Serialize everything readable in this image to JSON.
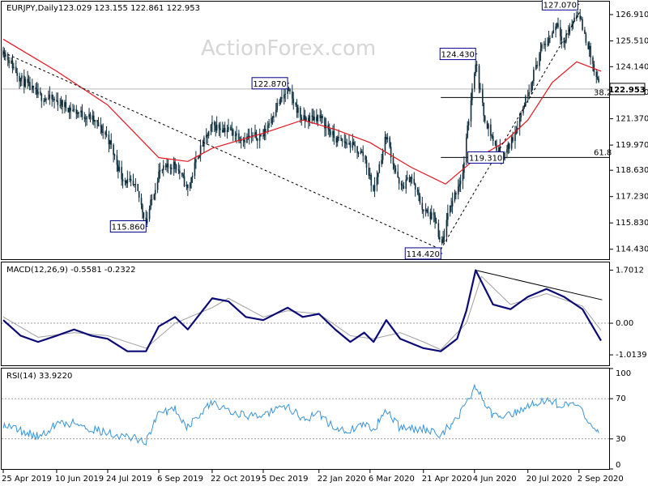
{
  "chart_data": [
    {
      "type": "candlestick",
      "symbol": "EURJPY",
      "timeframe": "Daily",
      "header": {
        "symbol_timeframe": "EURJPY,Daily",
        "ohlc": "123.029 123.155 122.861 122.953"
      },
      "watermark": "ActionForex.com",
      "current_price": 122.953,
      "current_price_label": "122.953",
      "ylim": [
        113.9,
        127.6
      ],
      "y_ticks": [
        {
          "value": 126.91,
          "label": "126.910"
        },
        {
          "value": 125.51,
          "label": "125.510"
        },
        {
          "value": 124.14,
          "label": "124.140"
        },
        {
          "value": 122.77,
          "label": "122.770"
        },
        {
          "value": 121.37,
          "label": "121.370"
        },
        {
          "value": 119.97,
          "label": "119.970"
        },
        {
          "value": 118.63,
          "label": "118.630"
        },
        {
          "value": 117.23,
          "label": "117.230"
        },
        {
          "value": 115.83,
          "label": "115.830"
        },
        {
          "value": 114.43,
          "label": "114.430"
        }
      ],
      "x_ticks": [
        {
          "date": "2019-04-25",
          "label": "25 Apr 2019"
        },
        {
          "date": "2019-06-10",
          "label": "10 Jun 2019"
        },
        {
          "date": "2019-07-24",
          "label": "24 Jul 2019"
        },
        {
          "date": "2019-09-06",
          "label": "6 Sep 2019"
        },
        {
          "date": "2019-10-22",
          "label": "22 Oct 2019"
        },
        {
          "date": "2019-12-05",
          "label": "5 Dec 2019"
        },
        {
          "date": "2020-01-22",
          "label": "22 Jan 2020"
        },
        {
          "date": "2020-03-06",
          "label": "6 Mar 2020"
        },
        {
          "date": "2020-04-21",
          "label": "21 Apr 2020"
        },
        {
          "date": "2020-06-04",
          "label": "4 Jun 2020"
        },
        {
          "date": "2020-07-20",
          "label": "20 Jul 2020"
        },
        {
          "date": "2020-09-02",
          "label": "2 Sep 2020"
        }
      ],
      "price_path": [
        {
          "date": "2019-04-25",
          "value": 125.0
        },
        {
          "date": "2019-05-10",
          "value": 123.5
        },
        {
          "date": "2019-05-25",
          "value": 122.6
        },
        {
          "date": "2019-06-10",
          "value": 122.3
        },
        {
          "date": "2019-06-25",
          "value": 121.8
        },
        {
          "date": "2019-07-10",
          "value": 121.4
        },
        {
          "date": "2019-07-24",
          "value": 120.4
        },
        {
          "date": "2019-08-05",
          "value": 118.3
        },
        {
          "date": "2019-08-18",
          "value": 117.6
        },
        {
          "date": "2019-08-26",
          "value": 115.86
        },
        {
          "date": "2019-09-06",
          "value": 118.5
        },
        {
          "date": "2019-09-20",
          "value": 119.0
        },
        {
          "date": "2019-10-01",
          "value": 117.6
        },
        {
          "date": "2019-10-10",
          "value": 119.5
        },
        {
          "date": "2019-10-22",
          "value": 121.0
        },
        {
          "date": "2019-11-05",
          "value": 120.8
        },
        {
          "date": "2019-11-18",
          "value": 120.3
        },
        {
          "date": "2019-12-05",
          "value": 120.5
        },
        {
          "date": "2019-12-16",
          "value": 122.0
        },
        {
          "date": "2019-12-26",
          "value": 122.87
        },
        {
          "date": "2020-01-08",
          "value": 121.3
        },
        {
          "date": "2020-01-22",
          "value": 121.5
        },
        {
          "date": "2020-02-05",
          "value": 120.3
        },
        {
          "date": "2020-02-18",
          "value": 120.0
        },
        {
          "date": "2020-03-01",
          "value": 119.4
        },
        {
          "date": "2020-03-09",
          "value": 117.5
        },
        {
          "date": "2020-03-20",
          "value": 120.5
        },
        {
          "date": "2020-04-01",
          "value": 117.6
        },
        {
          "date": "2020-04-10",
          "value": 118.3
        },
        {
          "date": "2020-04-21",
          "value": 116.5
        },
        {
          "date": "2020-05-01",
          "value": 116.0
        },
        {
          "date": "2020-05-06",
          "value": 114.42
        },
        {
          "date": "2020-05-14",
          "value": 116.7
        },
        {
          "date": "2020-05-25",
          "value": 118.5
        },
        {
          "date": "2020-06-01",
          "value": 122.5
        },
        {
          "date": "2020-06-05",
          "value": 124.43
        },
        {
          "date": "2020-06-12",
          "value": 121.6
        },
        {
          "date": "2020-06-22",
          "value": 119.9
        },
        {
          "date": "2020-06-29",
          "value": 119.31
        },
        {
          "date": "2020-07-08",
          "value": 120.5
        },
        {
          "date": "2020-07-20",
          "value": 122.8
        },
        {
          "date": "2020-07-31",
          "value": 125.0
        },
        {
          "date": "2020-08-07",
          "value": 125.6
        },
        {
          "date": "2020-08-14",
          "value": 126.5
        },
        {
          "date": "2020-08-20",
          "value": 125.4
        },
        {
          "date": "2020-08-28",
          "value": 126.6
        },
        {
          "date": "2020-09-01",
          "value": 127.07
        },
        {
          "date": "2020-09-07",
          "value": 125.8
        },
        {
          "date": "2020-09-11",
          "value": 125.0
        },
        {
          "date": "2020-09-16",
          "value": 123.6
        },
        {
          "date": "2020-09-21",
          "value": 122.953
        }
      ],
      "moving_average": [
        {
          "date": "2019-04-25",
          "value": 125.6
        },
        {
          "date": "2019-06-10",
          "value": 123.9
        },
        {
          "date": "2019-07-24",
          "value": 122.1
        },
        {
          "date": "2019-09-06",
          "value": 119.3
        },
        {
          "date": "2019-10-01",
          "value": 119.1
        },
        {
          "date": "2019-10-22",
          "value": 119.8
        },
        {
          "date": "2019-12-05",
          "value": 120.6
        },
        {
          "date": "2020-01-08",
          "value": 121.3
        },
        {
          "date": "2020-02-05",
          "value": 120.8
        },
        {
          "date": "2020-03-06",
          "value": 120.1
        },
        {
          "date": "2020-04-10",
          "value": 118.8
        },
        {
          "date": "2020-05-10",
          "value": 117.9
        },
        {
          "date": "2020-06-04",
          "value": 119.2
        },
        {
          "date": "2020-06-29",
          "value": 120.1
        },
        {
          "date": "2020-07-20",
          "value": 121.3
        },
        {
          "date": "2020-08-10",
          "value": 123.3
        },
        {
          "date": "2020-08-31",
          "value": 124.4
        },
        {
          "date": "2020-09-21",
          "value": 123.9
        }
      ],
      "annotations": [
        {
          "date": "2019-08-26",
          "value": 115.86,
          "label": "115.860",
          "position": "below-left"
        },
        {
          "date": "2019-12-26",
          "value": 122.87,
          "label": "122.870",
          "position": "above-left"
        },
        {
          "date": "2020-05-06",
          "value": 114.42,
          "label": "114.420",
          "position": "below-left"
        },
        {
          "date": "2020-06-05",
          "value": 124.43,
          "label": "124.430",
          "position": "above-left"
        },
        {
          "date": "2020-06-29",
          "value": 119.31,
          "label": "119.310",
          "position": "at-left"
        },
        {
          "date": "2020-09-01",
          "value": 127.07,
          "label": "127.070",
          "position": "above-left"
        }
      ],
      "fib_levels": [
        {
          "label": "38.2",
          "value": 122.5,
          "from_date": "2020-05-06"
        },
        {
          "label": "61.8",
          "value": 119.31,
          "from_date": "2020-05-06"
        }
      ],
      "trend_lines": [
        {
          "from": {
            "date": "2019-04-25",
            "value": 124.9
          },
          "to": {
            "date": "2020-05-06",
            "value": 114.42
          }
        },
        {
          "from": {
            "date": "2020-05-06",
            "value": 114.42
          },
          "to": {
            "date": "2020-09-03",
            "value": 127.07
          }
        }
      ]
    },
    {
      "type": "line",
      "indicator": "MACD",
      "title": "MACD(12,26,9) -0.5581 -0.2322",
      "ylim": [
        -1.35,
        1.95
      ],
      "y_ticks": [
        {
          "value": 1.7012,
          "label": "1.7012"
        },
        {
          "value": 0.0,
          "label": "0.00"
        },
        {
          "value": -1.0139,
          "label": "-1.0139"
        }
      ],
      "series": [
        {
          "values": [
            {
              "date": "2019-04-25",
              "value": 0.1
            },
            {
              "date": "2019-05-10",
              "value": -0.4
            },
            {
              "date": "2019-05-25",
              "value": -0.6
            },
            {
              "date": "2019-06-10",
              "value": -0.4
            },
            {
              "date": "2019-06-25",
              "value": -0.2
            },
            {
              "date": "2019-07-10",
              "value": -0.4
            },
            {
              "date": "2019-07-24",
              "value": -0.5
            },
            {
              "date": "2019-08-10",
              "value": -0.9
            },
            {
              "date": "2019-08-26",
              "value": -0.9
            },
            {
              "date": "2019-09-06",
              "value": -0.1
            },
            {
              "date": "2019-09-20",
              "value": 0.2
            },
            {
              "date": "2019-10-01",
              "value": -0.2
            },
            {
              "date": "2019-10-22",
              "value": 0.8
            },
            {
              "date": "2019-11-05",
              "value": 0.7
            },
            {
              "date": "2019-11-20",
              "value": 0.2
            },
            {
              "date": "2019-12-05",
              "value": 0.1
            },
            {
              "date": "2019-12-26",
              "value": 0.5
            },
            {
              "date": "2020-01-08",
              "value": 0.2
            },
            {
              "date": "2020-01-22",
              "value": 0.3
            },
            {
              "date": "2020-02-05",
              "value": -0.2
            },
            {
              "date": "2020-02-18",
              "value": -0.6
            },
            {
              "date": "2020-03-01",
              "value": -0.3
            },
            {
              "date": "2020-03-09",
              "value": -0.6
            },
            {
              "date": "2020-03-20",
              "value": 0.1
            },
            {
              "date": "2020-04-01",
              "value": -0.5
            },
            {
              "date": "2020-04-21",
              "value": -0.8
            },
            {
              "date": "2020-05-06",
              "value": -0.9
            },
            {
              "date": "2020-05-20",
              "value": -0.5
            },
            {
              "date": "2020-05-28",
              "value": 0.4
            },
            {
              "date": "2020-06-05",
              "value": 1.7
            },
            {
              "date": "2020-06-20",
              "value": 0.6
            },
            {
              "date": "2020-07-05",
              "value": 0.45
            },
            {
              "date": "2020-07-20",
              "value": 0.85
            },
            {
              "date": "2020-08-05",
              "value": 1.1
            },
            {
              "date": "2020-08-20",
              "value": 0.85
            },
            {
              "date": "2020-09-05",
              "value": 0.45
            },
            {
              "date": "2020-09-21",
              "value": -0.56
            }
          ]
        },
        {
          "values": [
            {
              "date": "2019-04-25",
              "value": 0.2
            },
            {
              "date": "2019-05-25",
              "value": -0.45
            },
            {
              "date": "2019-06-25",
              "value": -0.3
            },
            {
              "date": "2019-07-24",
              "value": -0.4
            },
            {
              "date": "2019-08-26",
              "value": -0.8
            },
            {
              "date": "2019-09-20",
              "value": 0.0
            },
            {
              "date": "2019-10-22",
              "value": 0.5
            },
            {
              "date": "2019-11-05",
              "value": 0.8
            },
            {
              "date": "2019-12-05",
              "value": 0.2
            },
            {
              "date": "2019-12-26",
              "value": 0.4
            },
            {
              "date": "2020-01-22",
              "value": 0.3
            },
            {
              "date": "2020-02-18",
              "value": -0.4
            },
            {
              "date": "2020-03-09",
              "value": -0.5
            },
            {
              "date": "2020-04-01",
              "value": -0.3
            },
            {
              "date": "2020-04-21",
              "value": -0.6
            },
            {
              "date": "2020-05-06",
              "value": -0.85
            },
            {
              "date": "2020-05-28",
              "value": 0.0
            },
            {
              "date": "2020-06-10",
              "value": 1.5
            },
            {
              "date": "2020-07-05",
              "value": 0.6
            },
            {
              "date": "2020-08-05",
              "value": 0.95
            },
            {
              "date": "2020-09-05",
              "value": 0.55
            },
            {
              "date": "2020-09-21",
              "value": -0.23
            }
          ]
        }
      ],
      "trend_lines": [
        {
          "from": {
            "date": "2020-06-05",
            "value": 1.7
          },
          "to": {
            "date": "2020-09-22",
            "value": 0.75
          }
        }
      ]
    },
    {
      "type": "line",
      "indicator": "RSI",
      "title": "RSI(14) 33.9220",
      "ylim": [
        0,
        100
      ],
      "y_ticks": [
        {
          "value": 100,
          "label": "100"
        },
        {
          "value": 70,
          "label": "70"
        },
        {
          "value": 30,
          "label": "30"
        },
        {
          "value": 0,
          "label": "0"
        }
      ],
      "levels": [
        70,
        30
      ],
      "series": [
        {
          "values": [
            {
              "date": "2019-04-25",
              "value": 45
            },
            {
              "date": "2019-05-10",
              "value": 38
            },
            {
              "date": "2019-05-25",
              "value": 32
            },
            {
              "date": "2019-06-10",
              "value": 45
            },
            {
              "date": "2019-06-25",
              "value": 46
            },
            {
              "date": "2019-07-10",
              "value": 40
            },
            {
              "date": "2019-07-24",
              "value": 36
            },
            {
              "date": "2019-08-10",
              "value": 32
            },
            {
              "date": "2019-08-26",
              "value": 28
            },
            {
              "date": "2019-09-06",
              "value": 55
            },
            {
              "date": "2019-09-20",
              "value": 60
            },
            {
              "date": "2019-10-01",
              "value": 42
            },
            {
              "date": "2019-10-22",
              "value": 66
            },
            {
              "date": "2019-11-05",
              "value": 60
            },
            {
              "date": "2019-11-20",
              "value": 52
            },
            {
              "date": "2019-12-05",
              "value": 55
            },
            {
              "date": "2019-12-26",
              "value": 62
            },
            {
              "date": "2020-01-08",
              "value": 50
            },
            {
              "date": "2020-01-22",
              "value": 55
            },
            {
              "date": "2020-02-05",
              "value": 40
            },
            {
              "date": "2020-02-18",
              "value": 38
            },
            {
              "date": "2020-03-01",
              "value": 45
            },
            {
              "date": "2020-03-09",
              "value": 38
            },
            {
              "date": "2020-03-20",
              "value": 60
            },
            {
              "date": "2020-04-01",
              "value": 40
            },
            {
              "date": "2020-04-21",
              "value": 40
            },
            {
              "date": "2020-05-06",
              "value": 33
            },
            {
              "date": "2020-05-20",
              "value": 52
            },
            {
              "date": "2020-05-28",
              "value": 65
            },
            {
              "date": "2020-06-05",
              "value": 82
            },
            {
              "date": "2020-06-20",
              "value": 52
            },
            {
              "date": "2020-07-05",
              "value": 55
            },
            {
              "date": "2020-07-20",
              "value": 63
            },
            {
              "date": "2020-08-05",
              "value": 70
            },
            {
              "date": "2020-08-20",
              "value": 62
            },
            {
              "date": "2020-09-01",
              "value": 67
            },
            {
              "date": "2020-09-10",
              "value": 45
            },
            {
              "date": "2020-09-21",
              "value": 34
            }
          ]
        }
      ]
    }
  ],
  "colors": {
    "candle": "#0f2f3f",
    "moving_average": "#e8141d",
    "annotation_box": "#00008b",
    "macd_line": "#0b0b78",
    "signal_line": "#a0a0a0",
    "rsi_line": "#3a94d6",
    "trend_line": "#000000",
    "grid": "#9a9a9a"
  }
}
